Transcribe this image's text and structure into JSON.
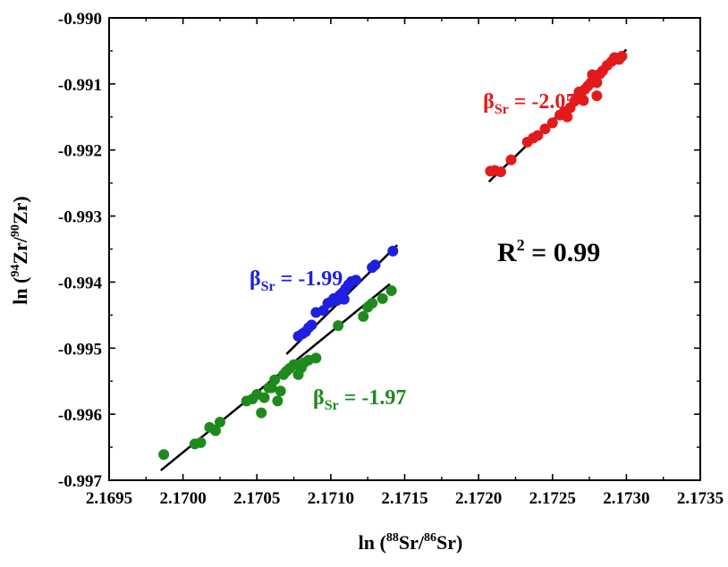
{
  "chart_data": {
    "type": "scatter",
    "title": "",
    "xlabel": {
      "prefix": "ln (",
      "sup1": "88",
      "mid": "Sr/",
      "sup2": "86",
      "suffix": "Sr)"
    },
    "ylabel": {
      "prefix": "ln (",
      "sup1": "94",
      "mid": "Zr/",
      "sup2": "90",
      "suffix": "Zr)"
    },
    "xlim": [
      2.1695,
      2.1735
    ],
    "ylim": [
      -0.997,
      -0.99
    ],
    "xticks": [
      "2.1695",
      "2.1700",
      "2.1705",
      "2.1710",
      "2.1715",
      "2.1720",
      "2.1725",
      "2.1730",
      "2.1735"
    ],
    "yticks": [
      "-0.990",
      "-0.991",
      "-0.992",
      "-0.993",
      "-0.994",
      "-0.995",
      "-0.996",
      "-0.997"
    ],
    "grid": false,
    "r_squared": {
      "base": "R",
      "sup": "2",
      "rest": " = 0.99"
    },
    "series": [
      {
        "color": "#e31a1c",
        "annotation": {
          "base": "β",
          "sub": "Sr",
          "rest": " = -2.05",
          "at": [
            2.17203,
            -0.99137
          ]
        },
        "fit": {
          "x": [
            2.17207,
            2.173
          ],
          "y": [
            -0.99248,
            -0.99048
          ]
        },
        "points": [
          [
            2.17208,
            -0.99232
          ],
          [
            2.17211,
            -0.99231
          ],
          [
            2.17215,
            -0.99233
          ],
          [
            2.17222,
            -0.99215
          ],
          [
            2.17233,
            -0.99188
          ],
          [
            2.17237,
            -0.99182
          ],
          [
            2.1724,
            -0.99178
          ],
          [
            2.17245,
            -0.99168
          ],
          [
            2.1725,
            -0.99159
          ],
          [
            2.17255,
            -0.99147
          ],
          [
            2.17258,
            -0.99142
          ],
          [
            2.1726,
            -0.9915
          ],
          [
            2.17262,
            -0.99136
          ],
          [
            2.17265,
            -0.99126
          ],
          [
            2.17267,
            -0.9912
          ],
          [
            2.1727,
            -0.99122
          ],
          [
            2.17268,
            -0.99112
          ],
          [
            2.17272,
            -0.99108
          ],
          [
            2.17274,
            -0.99103
          ],
          [
            2.17276,
            -0.99098
          ],
          [
            2.17278,
            -0.99092
          ],
          [
            2.1728,
            -0.99098
          ],
          [
            2.17282,
            -0.99085
          ],
          [
            2.17284,
            -0.9908
          ],
          [
            2.17287,
            -0.99072
          ],
          [
            2.1729,
            -0.99066
          ],
          [
            2.17292,
            -0.9906
          ],
          [
            2.17295,
            -0.99063
          ],
          [
            2.17297,
            -0.99058
          ],
          [
            2.17277,
            -0.99086
          ],
          [
            2.1728,
            -0.99118
          ],
          [
            2.17271,
            -0.99125
          ]
        ]
      },
      {
        "color": "#1f1fe0",
        "annotation": {
          "base": "β",
          "sub": "Sr",
          "rest": " = -1.99",
          "at": [
            2.17045,
            -0.99405
          ]
        },
        "fit": {
          "x": [
            2.1707,
            2.17145
          ],
          "y": [
            -0.99509,
            -0.99344
          ]
        },
        "points": [
          [
            2.17078,
            -0.99482
          ],
          [
            2.17081,
            -0.99478
          ],
          [
            2.17083,
            -0.99475
          ],
          [
            2.17085,
            -0.99469
          ],
          [
            2.17087,
            -0.99465
          ],
          [
            2.1709,
            -0.99446
          ],
          [
            2.17095,
            -0.99443
          ],
          [
            2.17098,
            -0.99432
          ],
          [
            2.171,
            -0.9943
          ],
          [
            2.17102,
            -0.99425
          ],
          [
            2.17104,
            -0.99428
          ],
          [
            2.17106,
            -0.9942
          ],
          [
            2.17108,
            -0.99416
          ],
          [
            2.17109,
            -0.99426
          ],
          [
            2.1711,
            -0.9941
          ],
          [
            2.17112,
            -0.99404
          ],
          [
            2.17114,
            -0.99399
          ],
          [
            2.17117,
            -0.99397
          ],
          [
            2.17128,
            -0.99378
          ],
          [
            2.1713,
            -0.99374
          ],
          [
            2.17142,
            -0.99353
          ]
        ]
      },
      {
        "color": "#1e8a1e",
        "annotation": {
          "base": "β",
          "sub": "Sr",
          "rest": " = -1.97",
          "at": [
            2.17088,
            -0.99585
          ]
        },
        "fit": {
          "x": [
            2.16985,
            2.1714
          ],
          "y": [
            -0.99685,
            -0.99403
          ]
        },
        "points": [
          [
            2.16987,
            -0.99661
          ],
          [
            2.17008,
            -0.99645
          ],
          [
            2.17012,
            -0.99643
          ],
          [
            2.17018,
            -0.9962
          ],
          [
            2.17022,
            -0.99625
          ],
          [
            2.17025,
            -0.99612
          ],
          [
            2.17043,
            -0.9958
          ],
          [
            2.17047,
            -0.99577
          ],
          [
            2.1705,
            -0.9957
          ],
          [
            2.17053,
            -0.99598
          ],
          [
            2.17055,
            -0.99575
          ],
          [
            2.17058,
            -0.9956
          ],
          [
            2.1706,
            -0.9956
          ],
          [
            2.17062,
            -0.99548
          ],
          [
            2.17064,
            -0.9958
          ],
          [
            2.17066,
            -0.99565
          ],
          [
            2.17068,
            -0.9954
          ],
          [
            2.1707,
            -0.99535
          ],
          [
            2.17072,
            -0.99531
          ],
          [
            2.17075,
            -0.99525
          ],
          [
            2.17077,
            -0.99525
          ],
          [
            2.17078,
            -0.9954
          ],
          [
            2.1708,
            -0.9953
          ],
          [
            2.17082,
            -0.99522
          ],
          [
            2.17085,
            -0.99518
          ],
          [
            2.1709,
            -0.99515
          ],
          [
            2.17105,
            -0.99466
          ],
          [
            2.17122,
            -0.99452
          ],
          [
            2.17125,
            -0.99438
          ],
          [
            2.17128,
            -0.99432
          ],
          [
            2.17135,
            -0.99425
          ],
          [
            2.17141,
            -0.99413
          ]
        ]
      }
    ]
  }
}
